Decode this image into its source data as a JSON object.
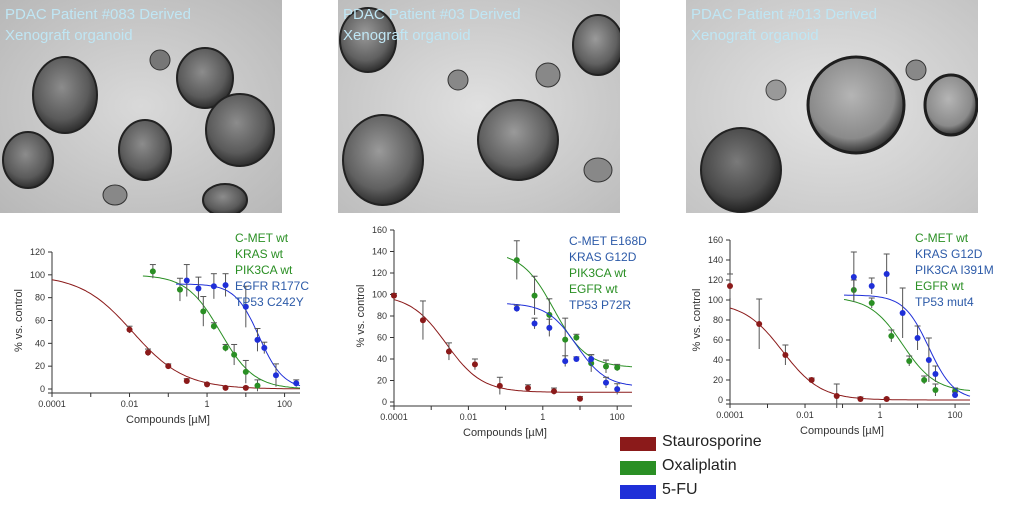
{
  "colors": {
    "Staurosporine": "#8b1a1a",
    "Oxaliplatin": "#2a8f24",
    "5-FU": "#1f2fd8",
    "wt_text": "#2a8f24",
    "mut_text": "#2c5aa8"
  },
  "panels": [
    {
      "caption": [
        "PDAC Patient #083 Derived",
        "Xenograft organoid"
      ]
    },
    {
      "caption": [
        "PDAC Patient #03 Derived",
        "Xenograft organoid"
      ]
    },
    {
      "caption": [
        "PDAC Patient #013 Derived",
        "Xenograft organoid"
      ]
    }
  ],
  "legend": [
    {
      "name": "Staurosporine",
      "color": "#8b1a1a"
    },
    {
      "name": "Oxaliplatin",
      "color": "#2a8f24"
    },
    {
      "name": "5-FU",
      "color": "#1f2fd8"
    }
  ],
  "chart_data": [
    {
      "type": "scatter",
      "xscale": "log",
      "xlabel": "Compounds [µM]",
      "ylabel": "% vs. control",
      "xlim": [
        0.0001,
        250
      ],
      "ylim": [
        0,
        120
      ],
      "xticks": [
        "0.0001",
        "0.01",
        "1",
        "100"
      ],
      "yticks": [
        "0",
        "20",
        "40",
        "60",
        "80",
        "100",
        "120"
      ],
      "mutations": [
        {
          "text": "C-MET wt",
          "status": "wt"
        },
        {
          "text": "KRAS wt",
          "status": "wt"
        },
        {
          "text": "PIK3CA wt",
          "status": "wt"
        },
        {
          "text": "EGFR R177C",
          "status": "mut"
        },
        {
          "text": "TP53 C242Y",
          "status": "mut"
        }
      ],
      "series": [
        {
          "name": "Staurosporine",
          "x": [
            0.01,
            0.03,
            0.1,
            0.3,
            1,
            3,
            10
          ],
          "y": [
            52,
            32,
            20,
            7,
            4,
            1,
            1
          ],
          "err": [
            3,
            3,
            2,
            2,
            1,
            1,
            1
          ],
          "fit": {
            "top": 100,
            "bottom": 0,
            "ic50": 0.012,
            "hill": 0.65
          }
        },
        {
          "name": "Oxaliplatin",
          "x": [
            0.04,
            0.2,
            0.8,
            1.5,
            3,
            5,
            10,
            20
          ],
          "y": [
            103,
            87,
            68,
            55,
            36,
            30,
            15,
            3
          ],
          "err": [
            6,
            10,
            13,
            3,
            3,
            9,
            10,
            5
          ],
          "fit": {
            "top": 100,
            "bottom": 0,
            "ic50": 2.2,
            "hill": 1
          }
        },
        {
          "name": "5-FU",
          "x": [
            0.3,
            0.6,
            1.5,
            3,
            10,
            20,
            30,
            60,
            200
          ],
          "y": [
            95,
            88,
            90,
            91,
            72,
            43,
            36,
            12,
            5
          ],
          "err": [
            14,
            10,
            11,
            10,
            18,
            10,
            5,
            10,
            3
          ],
          "fit": {
            "top": 92,
            "bottom": 0,
            "ic50": 22,
            "hill": 1.4
          }
        }
      ]
    },
    {
      "type": "scatter",
      "xscale": "log",
      "xlabel": "Compounds [µM]",
      "ylabel": "% vs. control",
      "xlim": [
        0.0001,
        250
      ],
      "ylim": [
        0,
        160
      ],
      "xticks": [
        "0.0001",
        "0.01",
        "1",
        "100"
      ],
      "yticks": [
        "0",
        "20",
        "40",
        "60",
        "80",
        "100",
        "120",
        "140",
        "160"
      ],
      "mutations": [
        {
          "text": "C-MET E168D",
          "status": "mut"
        },
        {
          "text": "KRAS G12D",
          "status": "mut"
        },
        {
          "text": "PIK3CA wt",
          "status": "wt"
        },
        {
          "text": "EGFR wt",
          "status": "wt"
        },
        {
          "text": "TP53 P72R",
          "status": "mut"
        }
      ],
      "series": [
        {
          "name": "Staurosporine",
          "x": [
            0.0001,
            0.0006,
            0.003,
            0.015,
            0.07,
            0.4,
            2,
            10
          ],
          "y": [
            99,
            76,
            47,
            35,
            15,
            13,
            10,
            3
          ],
          "err": [
            2,
            18,
            8,
            5,
            8,
            3,
            3,
            2
          ],
          "fit": {
            "top": 100,
            "bottom": 9,
            "ic50": 0.0025,
            "hill": 0.9
          }
        },
        {
          "name": "Oxaliplatin",
          "x": [
            0.2,
            0.6,
            1.5,
            4,
            8,
            20,
            50,
            100
          ],
          "y": [
            132,
            99,
            81,
            58,
            60,
            36,
            33,
            32
          ],
          "err": [
            18,
            18,
            15,
            20,
            3,
            8,
            6,
            3
          ],
          "fit": {
            "top": 140,
            "bottom": 32,
            "ic50": 2,
            "hill": 1
          }
        },
        {
          "name": "5-FU",
          "x": [
            0.2,
            0.6,
            1.5,
            4,
            8,
            20,
            50,
            100
          ],
          "y": [
            87,
            73,
            69,
            38,
            40,
            40,
            18,
            12
          ],
          "err": [
            3,
            5,
            8,
            5,
            2,
            4,
            5,
            5
          ],
          "fit": {
            "top": 92,
            "bottom": 14,
            "ic50": 8,
            "hill": 1.1
          }
        }
      ]
    },
    {
      "type": "scatter",
      "xscale": "log",
      "xlabel": "Compounds [µM]",
      "ylabel": "% vs. control",
      "xlim": [
        0.0001,
        250
      ],
      "ylim": [
        0,
        160
      ],
      "xticks": [
        "0.0001",
        "0.01",
        "1",
        "100"
      ],
      "yticks": [
        "0",
        "20",
        "40",
        "60",
        "80",
        "100",
        "120",
        "140",
        "160"
      ],
      "mutations": [
        {
          "text": "C-MET wt",
          "status": "wt"
        },
        {
          "text": "KRAS G12D",
          "status": "mut"
        },
        {
          "text": "PIK3CA I391M",
          "status": "mut"
        },
        {
          "text": "EGFR wt",
          "status": "wt"
        },
        {
          "text": "TP53 mut4",
          "status": "mut"
        }
      ],
      "series": [
        {
          "name": "Staurosporine",
          "x": [
            0.0001,
            0.0006,
            0.003,
            0.015,
            0.07,
            0.3,
            1.5
          ],
          "y": [
            114,
            76,
            45,
            20,
            4,
            1,
            1
          ],
          "err": [
            12,
            25,
            10,
            2,
            12,
            2,
            1
          ],
          "fit": {
            "top": 98,
            "bottom": 0,
            "ic50": 0.0025,
            "hill": 0.85
          }
        },
        {
          "name": "Oxaliplatin",
          "x": [
            0.2,
            0.6,
            2,
            6,
            15,
            30,
            100
          ],
          "y": [
            110,
            97,
            64,
            39,
            20,
            10,
            9
          ],
          "err": [
            10,
            5,
            6,
            5,
            4,
            6,
            3
          ],
          "fit": {
            "top": 103,
            "bottom": 8,
            "ic50": 4,
            "hill": 1
          }
        },
        {
          "name": "5-FU",
          "x": [
            0.2,
            0.6,
            1.5,
            4,
            10,
            20,
            30,
            100
          ],
          "y": [
            123,
            114,
            126,
            87,
            62,
            40,
            26,
            5
          ],
          "err": [
            25,
            8,
            20,
            25,
            12,
            22,
            8,
            3
          ],
          "fit": {
            "top": 105,
            "bottom": 0,
            "ic50": 20,
            "hill": 1.3
          }
        }
      ]
    }
  ]
}
